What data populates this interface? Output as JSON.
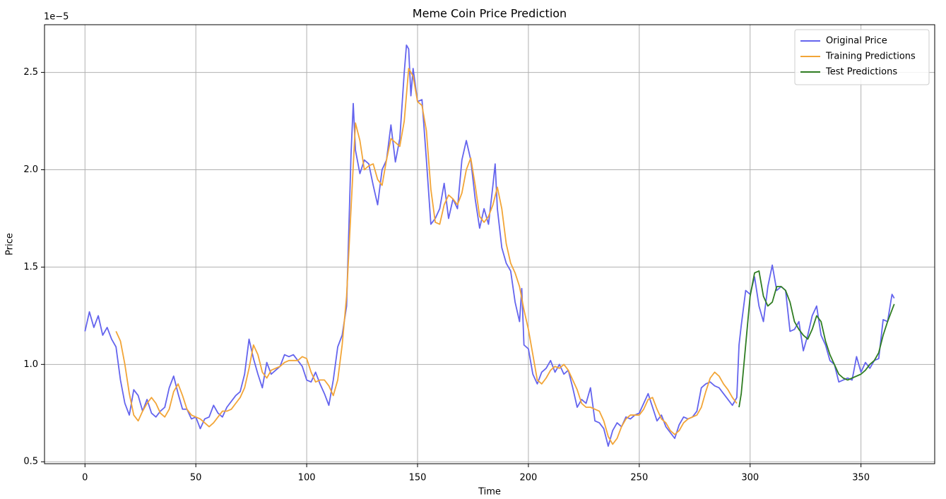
{
  "chart_data": {
    "type": "line",
    "title": "Meme Coin Price Prediction",
    "x_label": "Time",
    "y_label": "Price",
    "y_offset_label": "1e−5",
    "xlim": [
      -18.25,
      383.25
    ],
    "ylim": [
      0.49,
      2.745
    ],
    "xticks": [
      0,
      50,
      100,
      150,
      200,
      250,
      300,
      350
    ],
    "yticks": [
      0.5,
      {
        "value": 1,
        "label": "1.0"
      },
      1.5,
      {
        "value": 2,
        "label": "2.0"
      },
      2.5
    ],
    "grid": true,
    "legend": "upper right",
    "series": [
      {
        "name": "Original Price",
        "color": "#6464ee",
        "x": [
          0,
          2,
          4,
          6,
          8,
          10,
          12,
          14,
          16,
          18,
          20,
          22,
          24,
          26,
          28,
          30,
          32,
          34,
          36,
          38,
          40,
          42,
          44,
          46,
          48,
          50,
          52,
          54,
          56,
          58,
          60,
          62,
          64,
          66,
          68,
          70,
          72,
          74,
          76,
          78,
          80,
          82,
          84,
          86,
          88,
          90,
          92,
          94,
          96,
          98,
          100,
          102,
          104,
          106,
          108,
          110,
          112,
          114,
          116,
          118,
          120,
          121,
          122,
          124,
          126,
          128,
          130,
          132,
          134,
          136,
          138,
          140,
          142,
          144,
          145,
          146,
          147,
          148,
          150,
          152,
          154,
          156,
          158,
          160,
          162,
          164,
          166,
          168,
          170,
          172,
          174,
          176,
          178,
          180,
          182,
          184,
          185,
          186,
          188,
          190,
          192,
          194,
          196,
          197,
          198,
          200,
          202,
          204,
          206,
          208,
          210,
          212,
          214,
          216,
          218,
          220,
          222,
          224,
          226,
          228,
          230,
          232,
          234,
          236,
          238,
          240,
          242,
          244,
          246,
          248,
          250,
          252,
          254,
          256,
          258,
          260,
          262,
          264,
          266,
          268,
          270,
          272,
          274,
          276,
          278,
          280,
          282,
          284,
          286,
          288,
          290,
          292,
          294,
          295,
          296,
          298,
          300,
          302,
          304,
          306,
          308,
          310,
          312,
          314,
          316,
          318,
          320,
          322,
          324,
          326,
          328,
          330,
          332,
          334,
          336,
          338,
          340,
          342,
          344,
          346,
          348,
          350,
          352,
          354,
          356,
          358,
          360,
          362,
          364,
          365
        ],
        "values": [
          1.17,
          1.27,
          1.19,
          1.25,
          1.15,
          1.19,
          1.13,
          1.09,
          0.92,
          0.8,
          0.74,
          0.87,
          0.84,
          0.76,
          0.82,
          0.75,
          0.73,
          0.76,
          0.78,
          0.88,
          0.94,
          0.85,
          0.77,
          0.77,
          0.72,
          0.73,
          0.67,
          0.72,
          0.73,
          0.79,
          0.75,
          0.73,
          0.78,
          0.81,
          0.84,
          0.86,
          0.95,
          1.13,
          1.03,
          0.95,
          0.88,
          1.01,
          0.95,
          0.97,
          0.99,
          1.05,
          1.04,
          1.05,
          1.02,
          0.99,
          0.92,
          0.91,
          0.96,
          0.9,
          0.85,
          0.79,
          0.92,
          1.09,
          1.15,
          1.3,
          2.08,
          2.34,
          2.1,
          1.98,
          2.05,
          2.03,
          1.92,
          1.82,
          2.0,
          2.05,
          2.23,
          2.04,
          2.16,
          2.5,
          2.64,
          2.62,
          2.38,
          2.52,
          2.35,
          2.36,
          2.05,
          1.72,
          1.75,
          1.8,
          1.93,
          1.75,
          1.85,
          1.8,
          2.05,
          2.15,
          2.05,
          1.85,
          1.7,
          1.8,
          1.72,
          1.92,
          2.03,
          1.8,
          1.6,
          1.52,
          1.48,
          1.32,
          1.22,
          1.39,
          1.1,
          1.08,
          0.95,
          0.9,
          0.96,
          0.98,
          1.02,
          0.96,
          1.0,
          0.95,
          0.97,
          0.88,
          0.78,
          0.82,
          0.8,
          0.88,
          0.71,
          0.7,
          0.67,
          0.58,
          0.66,
          0.7,
          0.68,
          0.73,
          0.72,
          0.74,
          0.75,
          0.8,
          0.85,
          0.78,
          0.71,
          0.74,
          0.68,
          0.65,
          0.62,
          0.69,
          0.73,
          0.72,
          0.73,
          0.76,
          0.88,
          0.9,
          0.91,
          0.89,
          0.88,
          0.85,
          0.82,
          0.79,
          0.83,
          1.1,
          1.2,
          1.38,
          1.36,
          1.45,
          1.3,
          1.22,
          1.4,
          1.51,
          1.38,
          1.4,
          1.38,
          1.17,
          1.18,
          1.22,
          1.07,
          1.15,
          1.25,
          1.3,
          1.15,
          1.1,
          1.02,
          1.0,
          0.91,
          0.92,
          0.93,
          0.92,
          1.04,
          0.96,
          1.01,
          0.98,
          1.02,
          1.03,
          1.23,
          1.22,
          1.36,
          1.34
        ]
      },
      {
        "name": "Training Predictions",
        "color": "#f2a537",
        "x": [
          14,
          16,
          18,
          20,
          22,
          24,
          26,
          28,
          30,
          32,
          34,
          36,
          38,
          40,
          42,
          44,
          46,
          48,
          50,
          52,
          54,
          56,
          58,
          60,
          62,
          64,
          66,
          68,
          70,
          72,
          74,
          76,
          78,
          80,
          82,
          84,
          86,
          88,
          90,
          92,
          94,
          96,
          98,
          100,
          102,
          104,
          106,
          108,
          110,
          112,
          114,
          116,
          118,
          120,
          122,
          124,
          126,
          128,
          130,
          132,
          134,
          136,
          138,
          140,
          142,
          144,
          146,
          148,
          150,
          152,
          154,
          156,
          158,
          160,
          162,
          164,
          166,
          168,
          170,
          172,
          174,
          176,
          178,
          180,
          182,
          184,
          186,
          188,
          190,
          192,
          194,
          196,
          198,
          200,
          202,
          204,
          206,
          208,
          210,
          212,
          214,
          216,
          218,
          220,
          222,
          224,
          226,
          228,
          230,
          232,
          234,
          236,
          238,
          240,
          242,
          244,
          246,
          248,
          250,
          252,
          254,
          256,
          258,
          260,
          262,
          264,
          266,
          268,
          270,
          272,
          274,
          276,
          278,
          280,
          282,
          284,
          286,
          288,
          290,
          292,
          294
        ],
        "values": [
          1.17,
          1.12,
          1.0,
          0.85,
          0.74,
          0.71,
          0.76,
          0.8,
          0.83,
          0.8,
          0.75,
          0.73,
          0.77,
          0.86,
          0.9,
          0.84,
          0.77,
          0.74,
          0.73,
          0.72,
          0.7,
          0.68,
          0.7,
          0.73,
          0.76,
          0.76,
          0.77,
          0.8,
          0.83,
          0.88,
          0.98,
          1.1,
          1.05,
          0.96,
          0.93,
          0.97,
          0.98,
          0.99,
          1.01,
          1.02,
          1.02,
          1.02,
          1.04,
          1.03,
          0.96,
          0.91,
          0.92,
          0.92,
          0.89,
          0.84,
          0.92,
          1.1,
          1.35,
          1.8,
          2.24,
          2.15,
          2.0,
          2.02,
          2.03,
          1.95,
          1.92,
          2.05,
          2.16,
          2.14,
          2.12,
          2.25,
          2.52,
          2.48,
          2.35,
          2.33,
          2.2,
          1.9,
          1.73,
          1.72,
          1.82,
          1.87,
          1.85,
          1.82,
          1.88,
          2.0,
          2.06,
          1.92,
          1.76,
          1.73,
          1.76,
          1.82,
          1.91,
          1.8,
          1.62,
          1.52,
          1.47,
          1.4,
          1.28,
          1.18,
          1.05,
          0.92,
          0.9,
          0.93,
          0.97,
          0.99,
          0.98,
          1.0,
          0.97,
          0.92,
          0.87,
          0.8,
          0.78,
          0.78,
          0.77,
          0.76,
          0.71,
          0.63,
          0.59,
          0.62,
          0.68,
          0.72,
          0.74,
          0.74,
          0.74,
          0.77,
          0.82,
          0.83,
          0.77,
          0.72,
          0.7,
          0.66,
          0.64,
          0.66,
          0.7,
          0.72,
          0.73,
          0.74,
          0.78,
          0.86,
          0.93,
          0.96,
          0.94,
          0.9,
          0.87,
          0.83,
          0.8
        ]
      },
      {
        "name": "Test Predictions",
        "color": "#2f7d22",
        "x": [
          295,
          296,
          298,
          300,
          302,
          304,
          306,
          308,
          310,
          312,
          314,
          316,
          318,
          320,
          322,
          324,
          326,
          328,
          330,
          332,
          334,
          336,
          338,
          340,
          342,
          344,
          346,
          348,
          350,
          352,
          354,
          356,
          358,
          360,
          362,
          364,
          365
        ],
        "values": [
          0.78,
          0.85,
          1.1,
          1.35,
          1.47,
          1.48,
          1.35,
          1.3,
          1.32,
          1.4,
          1.4,
          1.38,
          1.32,
          1.22,
          1.18,
          1.15,
          1.13,
          1.18,
          1.25,
          1.22,
          1.12,
          1.05,
          1.0,
          0.95,
          0.93,
          0.92,
          0.93,
          0.94,
          0.95,
          0.97,
          1.0,
          1.02,
          1.06,
          1.15,
          1.22,
          1.28,
          1.31
        ]
      }
    ]
  }
}
